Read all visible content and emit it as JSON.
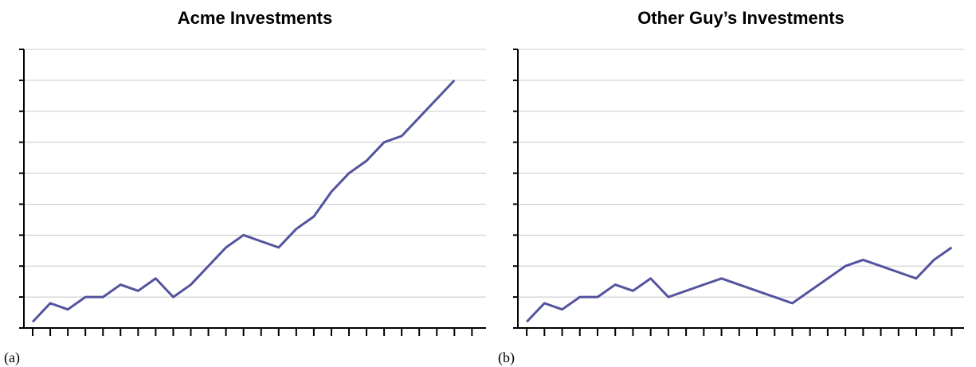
{
  "chart_data": [
    {
      "type": "line",
      "title": "Acme Investments",
      "label": "(a)",
      "x": [
        0,
        1,
        2,
        3,
        4,
        5,
        6,
        7,
        8,
        9,
        10,
        11,
        12,
        13,
        14,
        15,
        16,
        17,
        18,
        19,
        20,
        21,
        22,
        23,
        24
      ],
      "series": [
        {
          "color": "#53539e",
          "values": [
            0.2,
            0.8,
            0.6,
            1,
            1,
            1.4,
            1.2,
            1.6,
            1,
            1.4,
            2,
            2.6,
            3,
            2.8,
            2.6,
            3.2,
            3.6,
            4.4,
            5,
            5.4,
            6,
            6.2,
            6.8,
            7.4,
            8
          ]
        }
      ],
      "xlim": [
        -0.5,
        25.8
      ],
      "xticks": [
        0,
        1,
        2,
        3,
        4,
        5,
        6,
        7,
        8,
        9,
        10,
        11,
        12,
        13,
        14,
        15,
        16,
        17,
        18,
        19,
        20,
        21,
        22,
        23,
        24,
        25
      ],
      "ylim": [
        0,
        9
      ],
      "yticks": [
        0,
        1,
        2,
        3,
        4,
        5,
        6,
        7,
        8,
        9
      ],
      "grid": true
    },
    {
      "type": "line",
      "title": "Other Guy’s Investments",
      "label": "(b)",
      "x": [
        0,
        1,
        2,
        3,
        4,
        5,
        6,
        7,
        8,
        11,
        15,
        18,
        19,
        22,
        23,
        24
      ],
      "series": [
        {
          "color": "#53539e",
          "values": [
            0.2,
            0.8,
            0.6,
            1,
            1,
            1.4,
            1.2,
            1.6,
            1,
            1.6,
            0.8,
            2,
            2.2,
            1.6,
            2.2,
            2.6
          ]
        }
      ],
      "xlim": [
        -0.5,
        24.7
      ],
      "xticks": [
        0,
        1,
        2,
        3,
        4,
        5,
        6,
        7,
        8,
        9,
        10,
        11,
        12,
        13,
        14,
        15,
        16,
        17,
        18,
        19,
        20,
        21,
        22,
        23,
        24
      ],
      "ylim": [
        0,
        9
      ],
      "yticks": [
        0,
        1,
        2,
        3,
        4,
        5,
        6,
        7,
        8,
        9
      ],
      "grid": true
    }
  ]
}
